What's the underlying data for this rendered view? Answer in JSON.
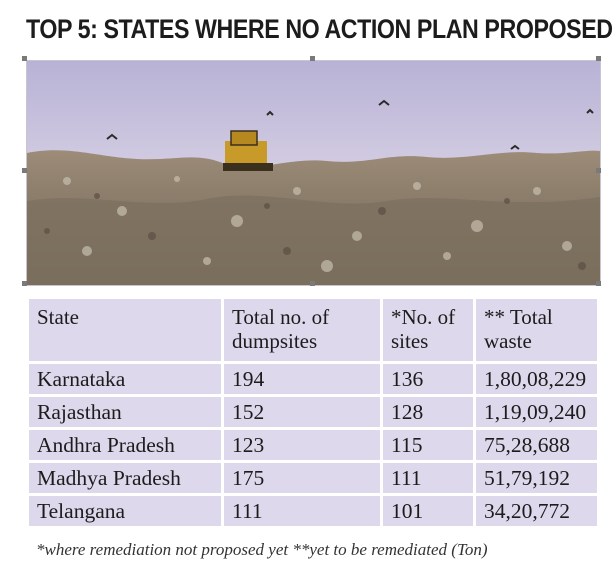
{
  "title": {
    "lead": "TOP 5:",
    "rest": " STATES WHERE NO ACTION PLAN PROPOSED"
  },
  "table": {
    "headers": {
      "state": "State",
      "total_dumpsites": "Total no. of dumpsites",
      "no_of_sites": "*No. of sites",
      "total_waste": "** Total waste"
    },
    "rows": [
      {
        "state": "Karnataka",
        "total_dumpsites": "194",
        "no_of_sites": "136",
        "total_waste": "1,80,08,229"
      },
      {
        "state": "Rajasthan",
        "total_dumpsites": "152",
        "no_of_sites": "128",
        "total_waste": "1,19,09,240"
      },
      {
        "state": "Andhra Pradesh",
        "total_dumpsites": "123",
        "no_of_sites": "115",
        "total_waste": "75,28,688"
      },
      {
        "state": "Madhya Pradesh",
        "total_dumpsites": "175",
        "no_of_sites": "111",
        "total_waste": "51,79,192"
      },
      {
        "state": "Telangana",
        "total_dumpsites": "111",
        "no_of_sites": "101",
        "total_waste": "34,20,772"
      }
    ]
  },
  "footnote": "*where remediation not proposed yet **yet to be remediated (Ton)",
  "colors": {
    "cell_bg": "#ddd8ec",
    "sky": "#c9c3dd",
    "waste": "#8a7a68"
  }
}
